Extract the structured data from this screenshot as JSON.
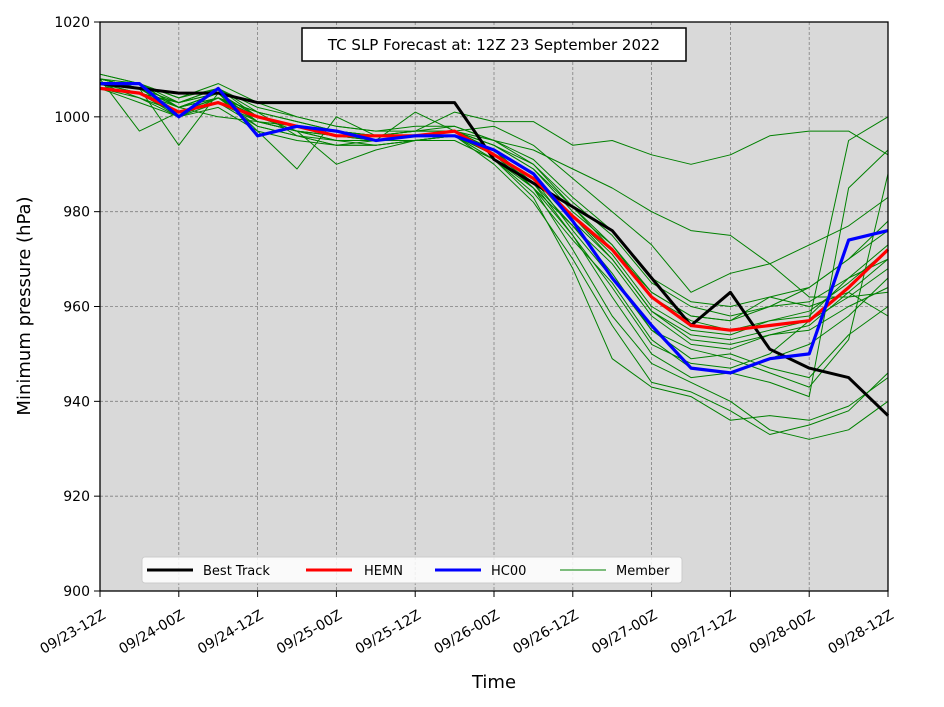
{
  "chart_data": {
    "type": "line",
    "title": "TC SLP Forecast at: 12Z 23 September 2022",
    "xlabel": "Time",
    "ylabel": "Minimum pressure (hPa)",
    "ylim": [
      900,
      1020
    ],
    "yticks": [
      900,
      920,
      940,
      960,
      980,
      1000,
      1020
    ],
    "xlim": [
      0,
      20
    ],
    "xticks": [
      0,
      2,
      4,
      6,
      8,
      10,
      12,
      14,
      16,
      18,
      20
    ],
    "xtick_labels": [
      "09/23-12Z",
      "09/24-00Z",
      "09/24-12Z",
      "09/25-00Z",
      "09/25-12Z",
      "09/26-00Z",
      "09/26-12Z",
      "09/27-00Z",
      "09/27-12Z",
      "09/28-00Z",
      "09/28-12Z"
    ],
    "x_step_hours": 6,
    "grid": true,
    "legend_position": "bottom-left",
    "colors": {
      "best_track": "#000000",
      "hemn": "#ff0000",
      "hc00": "#0000ff",
      "member": "#008000",
      "plot_bg": "#d9d9d9",
      "grid": "#808080"
    },
    "series": [
      {
        "name": "Best Track",
        "key": "best_track",
        "width": 3,
        "values": [
          1007,
          1006,
          1005,
          1005,
          1003,
          1003,
          1003,
          1003,
          1003,
          1003,
          991,
          986,
          981,
          976,
          966,
          956,
          963,
          951,
          947,
          945,
          937
        ]
      },
      {
        "name": "HEMN",
        "key": "hemn",
        "width": 3.2,
        "values": [
          1006,
          1005,
          1001,
          1003,
          1000,
          998,
          996,
          996,
          996,
          997,
          992,
          987,
          979,
          972,
          962,
          956,
          955,
          956,
          957,
          964,
          972
        ]
      },
      {
        "name": "HC00",
        "key": "hc00",
        "width": 3.2,
        "values": [
          1007,
          1007,
          1000,
          1006,
          996,
          998,
          997,
          995,
          996,
          996,
          993,
          988,
          978,
          966,
          956,
          947,
          946,
          949,
          950,
          974,
          976
        ]
      },
      {
        "name": "Member",
        "key": "member",
        "width": 1,
        "members": [
          [
            1008,
            1006,
            1002,
            1004,
            1001,
            999,
            997,
            996,
            996,
            997,
            994,
            989,
            980,
            973,
            962,
            957,
            955,
            957,
            958,
            966,
            973
          ],
          [
            1007,
            1005,
            1003,
            1005,
            999,
            997,
            995,
            995,
            996,
            996,
            992,
            986,
            977,
            969,
            958,
            952,
            951,
            954,
            956,
            963,
            970
          ],
          [
            1009,
            1007,
            1004,
            1006,
            1002,
            1000,
            998,
            997,
            997,
            998,
            995,
            991,
            983,
            976,
            966,
            961,
            960,
            962,
            964,
            970,
            976
          ],
          [
            1006,
            1004,
            1000,
            1003,
            998,
            996,
            994,
            994,
            995,
            995,
            991,
            984,
            974,
            965,
            953,
            947,
            946,
            949,
            952,
            958,
            966
          ],
          [
            1008,
            997,
            1001,
            1004,
            1000,
            998,
            996,
            995,
            996,
            996,
            993,
            988,
            979,
            971,
            960,
            955,
            954,
            957,
            959,
            965,
            972
          ],
          [
            1007,
            1006,
            994,
            1005,
            997,
            989,
            1000,
            996,
            997,
            997,
            994,
            990,
            982,
            975,
            965,
            960,
            958,
            960,
            961,
            966,
            970
          ],
          [
            1006,
            1007,
            1002,
            1000,
            999,
            997,
            990,
            993,
            995,
            996,
            992,
            987,
            978,
            970,
            959,
            954,
            953,
            955,
            957,
            962,
            968
          ],
          [
            1008,
            1006,
            1001,
            1004,
            1001,
            996,
            994,
            995,
            1001,
            997,
            995,
            993,
            989,
            985,
            980,
            976,
            975,
            969,
            962,
            962,
            963
          ],
          [
            1007,
            1005,
            1003,
            1006,
            1000,
            998,
            997,
            996,
            997,
            1001,
            999,
            999,
            994,
            995,
            992,
            990,
            992,
            996,
            997,
            997,
            992
          ],
          [
            1008,
            1007,
            1002,
            1005,
            999,
            998,
            996,
            996,
            996,
            997,
            998,
            994,
            987,
            980,
            973,
            963,
            967,
            969,
            973,
            977,
            983
          ],
          [
            1006,
            1005,
            1000,
            1004,
            998,
            996,
            995,
            994,
            995,
            996,
            992,
            985,
            977,
            967,
            955,
            949,
            950,
            947,
            945,
            954,
            960
          ],
          [
            1007,
            1004,
            1001,
            1003,
            999,
            997,
            996,
            995,
            996,
            996,
            991,
            983,
            968,
            949,
            943,
            941,
            936,
            937,
            936,
            939,
            945
          ],
          [
            1008,
            1006,
            1003,
            1005,
            1000,
            998,
            997,
            996,
            996,
            997,
            993,
            985,
            972,
            958,
            948,
            944,
            940,
            934,
            932,
            934,
            940
          ],
          [
            1006,
            1003,
            1000,
            1002,
            997,
            995,
            994,
            994,
            995,
            996,
            990,
            982,
            970,
            956,
            944,
            942,
            938,
            933,
            935,
            938,
            946
          ],
          [
            1009,
            1007,
            1004,
            1007,
            1003,
            1000,
            998,
            997,
            998,
            998,
            995,
            990,
            981,
            972,
            963,
            958,
            957,
            962,
            960,
            963,
            958
          ],
          [
            1007,
            1006,
            1002,
            1005,
            1000,
            997,
            996,
            996,
            996,
            997,
            993,
            986,
            975,
            962,
            950,
            945,
            946,
            944,
            941,
            985,
            993
          ],
          [
            1008,
            1006,
            1001,
            1004,
            999,
            997,
            995,
            995,
            996,
            996,
            992,
            987,
            976,
            966,
            955,
            951,
            949,
            946,
            943,
            953,
            988
          ],
          [
            1006,
            1005,
            1002,
            1004,
            1000,
            997,
            996,
            995,
            995,
            996,
            991,
            985,
            975,
            964,
            952,
            948,
            947,
            950,
            957,
            995,
            1000
          ],
          [
            1007,
            1007,
            1003,
            1006,
            1001,
            999,
            997,
            996,
            997,
            997,
            994,
            989,
            981,
            973,
            963,
            958,
            957,
            960,
            964,
            970,
            978
          ],
          [
            1008,
            1006,
            1002,
            1005,
            1000,
            998,
            996,
            996,
            996,
            997,
            993,
            988,
            979,
            970,
            959,
            953,
            952,
            954,
            955,
            960,
            964
          ]
        ]
      }
    ]
  }
}
